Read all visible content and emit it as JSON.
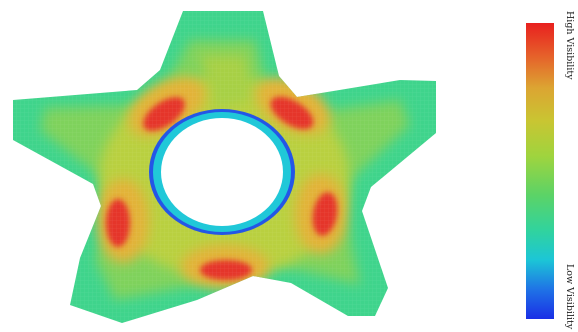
{
  "legend": {
    "high_label": "High Visibility",
    "low_label": "Low Visibility",
    "gradient_colors": [
      "#e8201f",
      "#e6602a",
      "#dca532",
      "#c9c532",
      "#9fd43e",
      "#5cd366",
      "#31d39d",
      "#1cc6d6",
      "#1f73e6",
      "#1a2ee6"
    ]
  },
  "colors": {
    "base_green": "#7fd25c",
    "outer_teal": "#3fd48c",
    "yellow_green": "#b9d040",
    "orange_ring": "#e3b237",
    "hot_orange": "#ea7a2e",
    "hot_red": "#e5352b",
    "hole_ring_cyan": "#20c8d8",
    "hole_ring_blue": "#2456e6",
    "hole_fill": "#ffffff"
  }
}
